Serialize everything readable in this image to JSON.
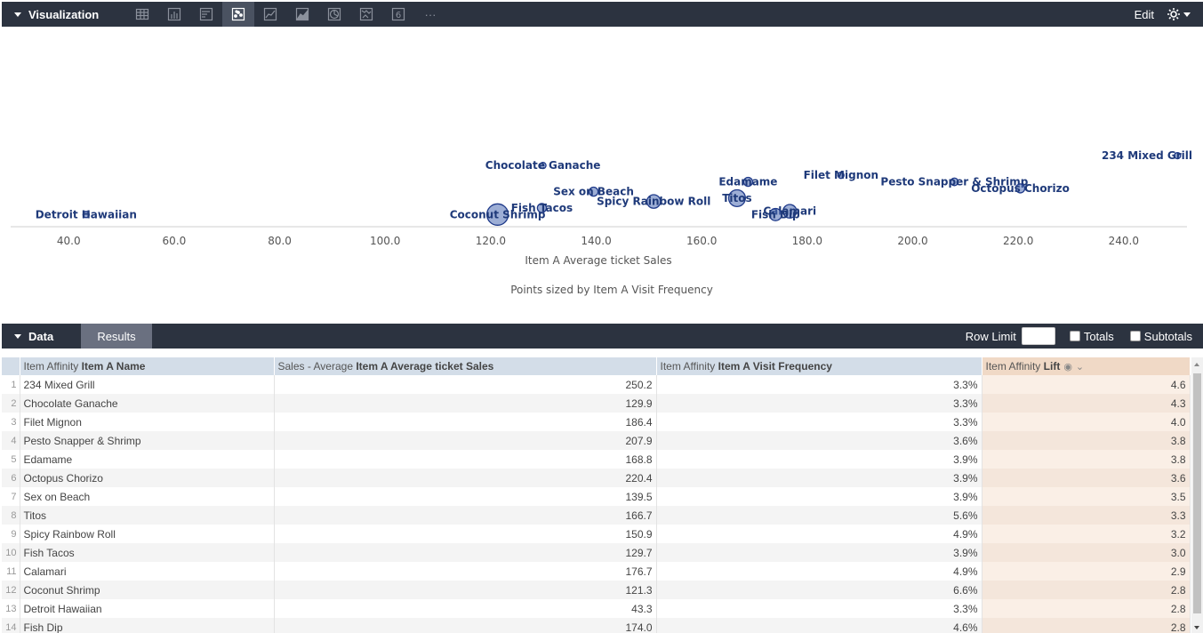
{
  "visualization": {
    "title": "Visualization",
    "edit_label": "Edit",
    "tools": [
      {
        "name": "table-view-icon"
      },
      {
        "name": "column-chart-icon"
      },
      {
        "name": "bar-chart-icon"
      },
      {
        "name": "scatter-chart-icon",
        "active": true
      },
      {
        "name": "line-chart-icon"
      },
      {
        "name": "area-chart-icon"
      },
      {
        "name": "pie-chart-icon"
      },
      {
        "name": "map-icon"
      },
      {
        "name": "single-value-icon",
        "label": "6"
      },
      {
        "name": "more-icon",
        "label": "···"
      }
    ]
  },
  "chart_data": {
    "type": "scatter",
    "xlabel": "Item A Average ticket Sales",
    "size_note": "Points sized by Item A Visit Frequency",
    "x_ticks": [
      "40.0",
      "60.0",
      "80.0",
      "100.0",
      "120.0",
      "140.0",
      "160.0",
      "180.0",
      "200.0",
      "220.0",
      "240.0"
    ],
    "xlim": [
      29,
      252
    ],
    "ylim": [
      2.7,
      8.0
    ],
    "points": [
      {
        "label": "234 Mixed Grill",
        "x": 250.2,
        "y": 4.6,
        "size": 3.3
      },
      {
        "label": "Chocolate Ganache",
        "x": 129.9,
        "y": 4.3,
        "size": 3.3
      },
      {
        "label": "Filet Mignon",
        "x": 186.4,
        "y": 4.0,
        "size": 3.3
      },
      {
        "label": "Pesto Snapper & Shrimp",
        "x": 207.9,
        "y": 3.8,
        "size": 3.6
      },
      {
        "label": "Edamame",
        "x": 168.8,
        "y": 3.8,
        "size": 3.9
      },
      {
        "label": "Octopus Chorizo",
        "x": 220.4,
        "y": 3.6,
        "size": 3.9
      },
      {
        "label": "Sex on Beach",
        "x": 139.5,
        "y": 3.5,
        "size": 3.9
      },
      {
        "label": "Titos",
        "x": 166.7,
        "y": 3.3,
        "size": 5.6
      },
      {
        "label": "Spicy Rainbow Roll",
        "x": 150.9,
        "y": 3.2,
        "size": 4.9
      },
      {
        "label": "Fish Tacos",
        "x": 129.7,
        "y": 3.0,
        "size": 3.9
      },
      {
        "label": "Calamari",
        "x": 176.7,
        "y": 2.9,
        "size": 4.9
      },
      {
        "label": "Coconut Shrimp",
        "x": 121.3,
        "y": 2.8,
        "size": 6.6
      },
      {
        "label": "Detroit Hawaiian",
        "x": 43.3,
        "y": 2.8,
        "size": 3.3
      },
      {
        "label": "Fish Dip",
        "x": 174.0,
        "y": 2.8,
        "size": 4.6
      }
    ]
  },
  "data": {
    "title": "Data",
    "results_tab": "Results",
    "row_limit_label": "Row Limit",
    "totals_label": "Totals",
    "subtotals_label": "Subtotals",
    "columns": [
      {
        "prefix": "Item Affinity",
        "name": "Item A Name"
      },
      {
        "prefix": "Sales - Average",
        "name": "Item A Average ticket Sales"
      },
      {
        "prefix": "Item Affinity",
        "name": "Item A Visit Frequency"
      },
      {
        "prefix": "Item Affinity",
        "name": "Lift"
      }
    ],
    "rows": [
      [
        "1",
        "234 Mixed Grill",
        "250.2",
        "3.3%",
        "4.6"
      ],
      [
        "2",
        "Chocolate Ganache",
        "129.9",
        "3.3%",
        "4.3"
      ],
      [
        "3",
        "Filet Mignon",
        "186.4",
        "3.3%",
        "4.0"
      ],
      [
        "4",
        "Pesto Snapper & Shrimp",
        "207.9",
        "3.6%",
        "3.8"
      ],
      [
        "5",
        "Edamame",
        "168.8",
        "3.9%",
        "3.8"
      ],
      [
        "6",
        "Octopus Chorizo",
        "220.4",
        "3.9%",
        "3.6"
      ],
      [
        "7",
        "Sex on Beach",
        "139.5",
        "3.9%",
        "3.5"
      ],
      [
        "8",
        "Titos",
        "166.7",
        "5.6%",
        "3.3"
      ],
      [
        "9",
        "Spicy Rainbow Roll",
        "150.9",
        "4.9%",
        "3.2"
      ],
      [
        "10",
        "Fish Tacos",
        "129.7",
        "3.9%",
        "3.0"
      ],
      [
        "11",
        "Calamari",
        "176.7",
        "4.9%",
        "2.9"
      ],
      [
        "12",
        "Coconut Shrimp",
        "121.3",
        "6.6%",
        "2.8"
      ],
      [
        "13",
        "Detroit Hawaiian",
        "43.3",
        "3.3%",
        "2.8"
      ],
      [
        "14",
        "Fish Dip",
        "174.0",
        "4.6%",
        "2.8"
      ]
    ]
  }
}
